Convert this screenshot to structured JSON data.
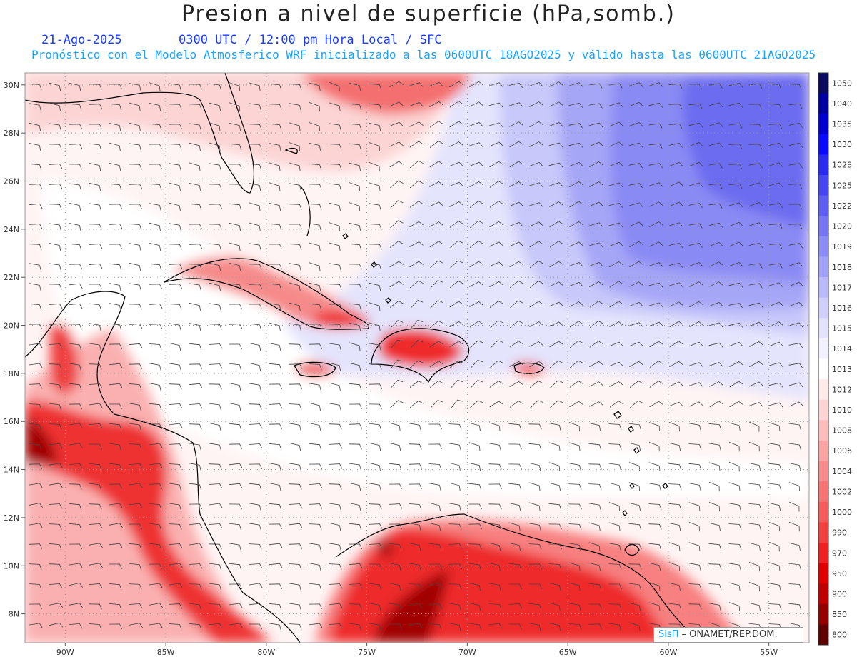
{
  "header": {
    "title": "Presion a nivel de superficie (hPa,somb.)",
    "date": "21-Ago-2025",
    "time": "0300 UTC / 12:00 pm Hora Local / SFC",
    "run": "Pronóstico con el Modelo Atmosferico WRF inicializado a las 0600UTC_18AGO2025 y válido hasta las  0600UTC_21AGO2025"
  },
  "axes": {
    "lon_labels": [
      "90W",
      "85W",
      "80W",
      "75W",
      "70W",
      "65W",
      "60W",
      "55W"
    ],
    "lat_labels": [
      "30N",
      "28N",
      "26N",
      "24N",
      "22N",
      "20N",
      "18N",
      "16N",
      "14N",
      "12N",
      "10N",
      "8N"
    ],
    "lon_range": [
      -92,
      -53
    ],
    "lat_range": [
      6.8,
      30.5
    ],
    "grid": "dotted"
  },
  "colorbar": {
    "levels": [
      "1050",
      "1040",
      "1035",
      "1030",
      "1028",
      "1025",
      "1022",
      "1020",
      "1019",
      "1018",
      "1017",
      "1016",
      "1015",
      "1014",
      "1013",
      "1012",
      "1010",
      "1008",
      "1006",
      "1004",
      "1002",
      "1000",
      "990",
      "970",
      "950",
      "900",
      "850",
      "800"
    ],
    "colors": [
      "#0a0a5e",
      "#0000a0",
      "#0000d0",
      "#0a0aff",
      "#2a2af0",
      "#4646f0",
      "#5e5ef2",
      "#7676f4",
      "#8c8cf6",
      "#a2a2f8",
      "#babafa",
      "#d0d0fb",
      "#e2e2fd",
      "#f2f2fe",
      "#ffffff",
      "#ffeaea",
      "#fdd4d4",
      "#fcbcbc",
      "#faa4a4",
      "#f88c8c",
      "#f67474",
      "#f45c5c",
      "#f24040",
      "#ee2020",
      "#e00000",
      "#c00000",
      "#940000",
      "#600000"
    ]
  },
  "credit": {
    "sis": "SisΠ",
    "org": " – ONAMET/REP.DOM."
  }
}
